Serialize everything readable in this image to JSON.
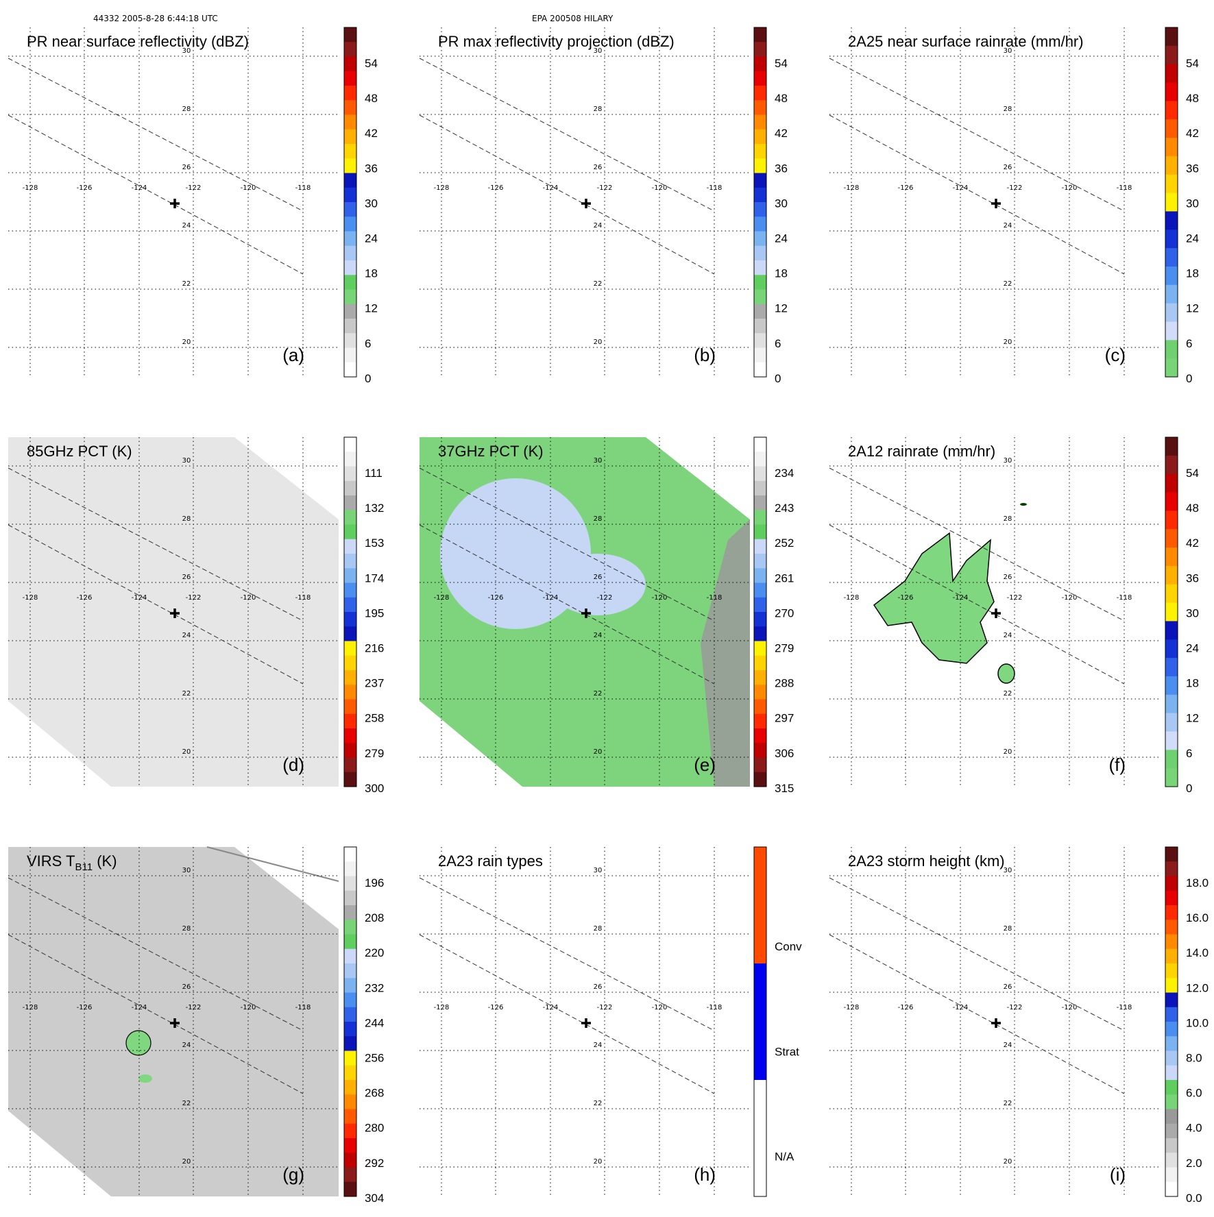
{
  "header": {
    "orbit_time": "44332 2005-8-28 6:44:18 UTC",
    "storm_id": "EPA 200508 HILARY"
  },
  "map_ticks": {
    "lon_labels": [
      "-128",
      "-126",
      "-124",
      "-122",
      "-120",
      "-118"
    ],
    "lat_labels": [
      "30",
      "28",
      "26",
      "24",
      "22",
      "20"
    ]
  },
  "chart_data": [
    {
      "type": "heatmap",
      "letter": "(a)",
      "title": "PR near surface reflectivity (dBZ)",
      "colorbar": [
        "54",
        "48",
        "42",
        "36",
        "30",
        "24",
        "18",
        "12",
        "6",
        "0"
      ],
      "colors": {
        "accent": "#000000"
      }
    },
    {
      "type": "heatmap",
      "letter": "(b)",
      "title": "PR max reflectivity projection (dBZ)",
      "colorbar": [
        "54",
        "48",
        "42",
        "36",
        "30",
        "24",
        "18",
        "12",
        "6",
        "0"
      ]
    },
    {
      "type": "heatmap",
      "letter": "(c)",
      "title": "2A25 near surface rainrate (mm/hr)",
      "colorbar": [
        "54",
        "48",
        "42",
        "36",
        "30",
        "24",
        "18",
        "12",
        "6",
        "0"
      ]
    },
    {
      "type": "heatmap",
      "letter": "(d)",
      "title": "85GHz PCT (K)",
      "colorbar": [
        "111",
        "132",
        "153",
        "174",
        "195",
        "216",
        "237",
        "258",
        "279",
        "300"
      ]
    },
    {
      "type": "heatmap",
      "letter": "(e)",
      "title": "37GHz PCT (K)",
      "colorbar": [
        "234",
        "243",
        "252",
        "261",
        "270",
        "279",
        "288",
        "297",
        "306",
        "315"
      ]
    },
    {
      "type": "heatmap",
      "letter": "(f)",
      "title": "2A12 rainrate (mm/hr)",
      "colorbar": [
        "54",
        "48",
        "42",
        "36",
        "30",
        "24",
        "18",
        "12",
        "6",
        "0"
      ]
    },
    {
      "type": "heatmap",
      "letter": "(g)",
      "title": "VIRS T",
      "title_sub": "B11",
      "title_suffix": " (K)",
      "colorbar": [
        "196",
        "208",
        "220",
        "232",
        "244",
        "256",
        "268",
        "280",
        "292",
        "304"
      ]
    },
    {
      "type": "heatmap",
      "letter": "(h)",
      "title": "2A23 rain types",
      "colorbar": [
        "Conv",
        "Strat",
        "N/A"
      ]
    },
    {
      "type": "heatmap",
      "letter": "(i)",
      "title": "2A23 storm height (km)",
      "colorbar": [
        "18.0",
        "16.0",
        "14.0",
        "12.0",
        "10.0",
        "8.0",
        "6.0",
        "4.0",
        "2.0",
        "0.0"
      ]
    }
  ],
  "palette": {
    "dbz": [
      "#ffffff",
      "#f2f2f2",
      "#e0e0e0",
      "#c8c8c8",
      "#aaaaaa",
      "#77d477",
      "#5fce5f",
      "#cbd8f7",
      "#a9c7f3",
      "#7bb3f1",
      "#4a8ff0",
      "#2f62e8",
      "#1431d6",
      "#0a14b8",
      "#fff200",
      "#ffd400",
      "#ffb000",
      "#ff8a00",
      "#ff5a00",
      "#ff2a00",
      "#e80000",
      "#c00000",
      "#8b1a1a",
      "#5a1010"
    ],
    "rain": [
      "#77d477",
      "#6fd06f",
      "#d0dcf8",
      "#a9c7f3",
      "#7bb3f1",
      "#4a8ff0",
      "#2f62e8",
      "#1431d6",
      "#0a14b8",
      "#fff200",
      "#ffd400",
      "#ffb000",
      "#ff8a00",
      "#ff5a00",
      "#ff2a00",
      "#e80000",
      "#c00000",
      "#8b1a1a",
      "#5a1010"
    ],
    "height": [
      "#ffffff",
      "#f2f2f2",
      "#e0e0e0",
      "#c8c8c8",
      "#aaaaaa",
      "#999999",
      "#77d477",
      "#5fce5f",
      "#cbd8f7",
      "#a9c7f3",
      "#7bb3f1",
      "#4a8ff0",
      "#2f62e8",
      "#0a14b8",
      "#fff200",
      "#ffd400",
      "#ffb000",
      "#ff8a00",
      "#ff5a00",
      "#ff2a00",
      "#e80000",
      "#c00000",
      "#8b1a1a",
      "#5a1010"
    ],
    "raintype": [
      "#ffffff",
      "#0000ee",
      "#ff4a00"
    ],
    "pct_swath": "#e6e6e6",
    "pct37_green": "#7dd47d",
    "pct37_blue": "#c6d6f5",
    "pct37_gray": "#999999",
    "virs_gray": "#cccccc",
    "f_green": "#7fd87f"
  }
}
